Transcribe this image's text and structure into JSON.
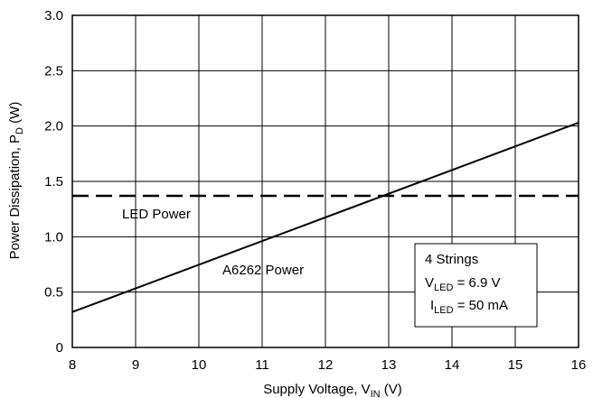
{
  "chart_data": {
    "type": "line",
    "xlim": [
      8,
      16
    ],
    "ylim": [
      0,
      3.0
    ],
    "x_ticks": [
      "8",
      "9",
      "10",
      "11",
      "12",
      "13",
      "14",
      "15",
      "16"
    ],
    "y_ticks": [
      "0",
      "0.5",
      "1.0",
      "1.5",
      "2.0",
      "2.5",
      "3.0"
    ],
    "grid": true,
    "xlabel": {
      "main": "Supply Voltage, V",
      "sub": "IN",
      "unit": " (V)"
    },
    "ylabel": {
      "main": "Power Dissipation, P",
      "sub": "D",
      "unit": " (W)"
    },
    "series": [
      {
        "name": "LED Power",
        "style": "dashed",
        "color": "#000000",
        "x": [
          8,
          16
        ],
        "y": [
          1.37,
          1.37
        ]
      },
      {
        "name": "A6262 Power",
        "style": "solid",
        "color": "#000000",
        "x": [
          8,
          16
        ],
        "y": [
          0.32,
          2.03
        ]
      }
    ],
    "annotation_box": {
      "line1": "4 Strings",
      "line2": {
        "pre": "V",
        "sub": "LED",
        "post": " = 6.9 V"
      },
      "line3": {
        "pre": "I",
        "sub": "LED",
        "post": " = 50 mA"
      }
    }
  }
}
